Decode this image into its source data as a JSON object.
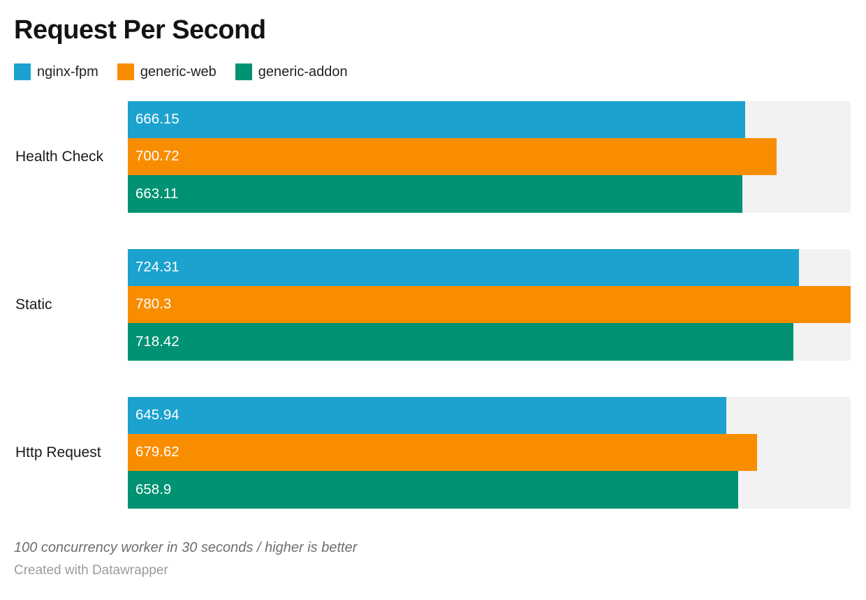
{
  "title": "Request Per Second",
  "chart_data": {
    "type": "bar",
    "orientation": "horizontal",
    "title": "Request Per Second",
    "categories": [
      "Health Check",
      "Static",
      "Http Request"
    ],
    "series": [
      {
        "name": "nginx-fpm",
        "color": "#1ca2ce",
        "values": [
          666.15,
          724.31,
          645.94
        ],
        "labels": [
          "666.15",
          "724.31",
          "645.94"
        ]
      },
      {
        "name": "generic-web",
        "color": "#f98d00",
        "values": [
          700.72,
          780.3,
          679.62
        ],
        "labels": [
          "700.72",
          "780.3",
          "679.62"
        ]
      },
      {
        "name": "generic-addon",
        "color": "#009272",
        "values": [
          663.11,
          718.42,
          658.9
        ],
        "labels": [
          "663.11",
          "718.42",
          "658.9"
        ]
      }
    ],
    "xlim": [
      0,
      780.3
    ],
    "value_labels": "inside-left",
    "legend_position": "top",
    "grid": false,
    "track_color": "#f2f2f2"
  },
  "colors": {
    "nginx_fpm": "#1ca2ce",
    "generic_web": "#f98d00",
    "generic_addon": "#009272",
    "track": "#f2f2f2",
    "title_text": "#131313",
    "category_text": "#1a1a1a",
    "note_text": "#6e6e6e",
    "attribution_text": "#9c9c9c"
  },
  "footer": {
    "note": "100 concurrency worker in 30 seconds / higher is better",
    "attribution": "Created with Datawrapper"
  }
}
